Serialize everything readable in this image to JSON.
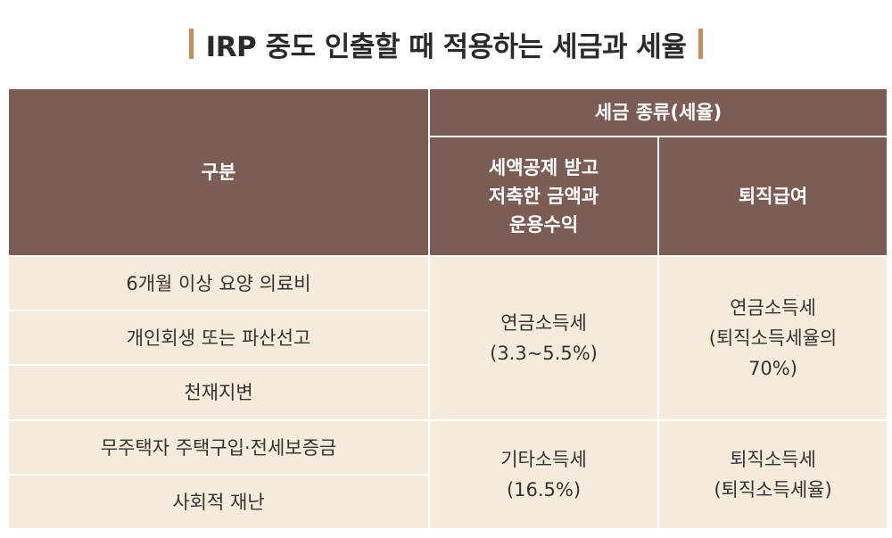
{
  "title": "IRP 중도 인출할 때 적용하는 세금과 세율",
  "header": {
    "category": "구분",
    "tax_type": "세금 종류(세율)",
    "col1": [
      "세액공제 받고",
      "저축한 금액과",
      "운용수익"
    ],
    "col2": "퇴직급여"
  },
  "rows": [
    {
      "category": "6개월 이상 요양 의료비"
    },
    {
      "category": "개인회생 또는 파산선고"
    },
    {
      "category": "천재지변"
    },
    {
      "category": "무주택자 주택구입·전세보증금"
    },
    {
      "category": "사회적 재난"
    }
  ],
  "groups": [
    {
      "col1": [
        "연금소득세",
        "(3.3~5.5%)"
      ],
      "col2": [
        "연금소득세",
        "(퇴직소득세율의",
        "70%)"
      ]
    },
    {
      "col1": [
        "기타소득세",
        "(16.5%)"
      ],
      "col2": [
        "퇴직소득세",
        "(퇴직소득세율)"
      ]
    }
  ],
  "colors": {
    "header_bg": "#7b5d56",
    "body_bg": "#f5ebdb",
    "accent_bar": "#c98c5c"
  }
}
